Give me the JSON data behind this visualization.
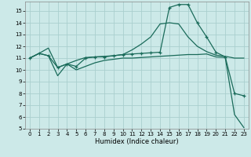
{
  "xlabel": "Humidex (Indice chaleur)",
  "xlim": [
    -0.5,
    23.5
  ],
  "ylim": [
    5,
    15.8
  ],
  "yticks": [
    5,
    6,
    7,
    8,
    9,
    10,
    11,
    12,
    13,
    14,
    15
  ],
  "xticks": [
    0,
    1,
    2,
    3,
    4,
    5,
    6,
    7,
    8,
    9,
    10,
    11,
    12,
    13,
    14,
    15,
    16,
    17,
    18,
    19,
    20,
    21,
    22,
    23
  ],
  "background_color": "#cce9e8",
  "grid_color": "#aacfce",
  "line_color": "#1a6b5a",
  "curve_marked_x": [
    0,
    1,
    2,
    3,
    4,
    5,
    6,
    7,
    8,
    9,
    10,
    11,
    12,
    13,
    14,
    15,
    16,
    17,
    18,
    19,
    20,
    21,
    22,
    23
  ],
  "curve_marked_y": [
    11.0,
    11.4,
    11.2,
    10.2,
    10.5,
    10.3,
    11.0,
    11.1,
    11.1,
    11.2,
    11.3,
    11.35,
    11.4,
    11.45,
    11.5,
    15.3,
    15.55,
    15.55,
    14.0,
    12.8,
    11.5,
    11.1,
    8.0,
    7.8
  ],
  "curve_upper_x": [
    0,
    1,
    2,
    3,
    4,
    5,
    6,
    7,
    8,
    9,
    10,
    11,
    12,
    13,
    14,
    15,
    16,
    17,
    18,
    19,
    20,
    21,
    22,
    23
  ],
  "curve_upper_y": [
    11.0,
    11.4,
    11.85,
    10.2,
    10.5,
    10.8,
    11.05,
    11.1,
    11.15,
    11.2,
    11.3,
    11.7,
    12.2,
    12.8,
    13.9,
    14.0,
    13.9,
    12.8,
    12.0,
    11.55,
    11.25,
    11.15,
    11.0,
    11.0
  ],
  "curve_lower_x": [
    0,
    1,
    2,
    3,
    4,
    5,
    6,
    7,
    8,
    9,
    10,
    11,
    12,
    13,
    14,
    15,
    16,
    17,
    18,
    19,
    20,
    21,
    22,
    23
  ],
  "curve_lower_y": [
    11.0,
    11.4,
    11.2,
    9.5,
    10.5,
    10.0,
    10.3,
    10.6,
    10.8,
    10.9,
    11.0,
    11.0,
    11.05,
    11.1,
    11.15,
    11.2,
    11.25,
    11.3,
    11.3,
    11.35,
    11.1,
    11.05,
    6.2,
    5.1
  ]
}
